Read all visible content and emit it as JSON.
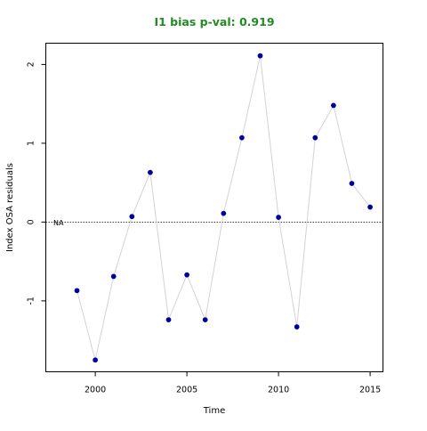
{
  "chart_data": {
    "type": "line",
    "title": "I1 bias p-val: 0.919",
    "xlabel": "Time",
    "ylabel": "Index OSA residuals",
    "xlim": [
      1997.3,
      2015.7
    ],
    "ylim": [
      -1.9,
      2.27
    ],
    "xticks": [
      2000,
      2005,
      2010,
      2015
    ],
    "yticks": [
      -1,
      0,
      1,
      2
    ],
    "reference_line": {
      "y": 0,
      "label": "NA"
    },
    "grid": false,
    "colors": {
      "title": "#228B22",
      "points": "#00008B",
      "line": "#d3d3d3"
    },
    "x": [
      1999,
      2000,
      2001,
      2002,
      2003,
      2004,
      2005,
      2006,
      2007,
      2008,
      2009,
      2010,
      2011,
      2012,
      2013,
      2014,
      2015
    ],
    "series": [
      {
        "values": [
          -0.87,
          -1.75,
          -0.69,
          0.07,
          0.63,
          -1.24,
          -0.67,
          -1.24,
          0.11,
          1.07,
          2.11,
          0.06,
          -1.33,
          1.07,
          1.48,
          0.49,
          0.19
        ]
      }
    ]
  }
}
